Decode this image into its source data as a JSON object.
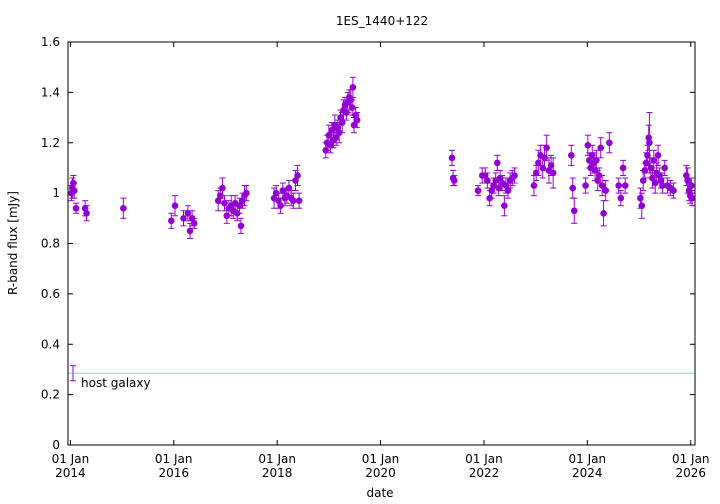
{
  "chart_data": {
    "type": "scatter",
    "title": "1ES_1440+122",
    "xlabel": "date",
    "ylabel": "R-band flux [mJy]",
    "ylim": [
      0,
      1.6
    ],
    "xlim": [
      "2013-12-15",
      "2026-01-31"
    ],
    "grid": false,
    "legend": "none",
    "y_ticks": [
      "0",
      "0.2",
      "0.4",
      "0.6",
      "0.8",
      "1",
      "1.2",
      "1.4",
      "1.6"
    ],
    "x_ticks": [
      {
        "date": "2014-01-01",
        "line1": "01 Jan",
        "line2": "2014"
      },
      {
        "date": "2016-01-01",
        "line1": "01 Jan",
        "line2": "2016"
      },
      {
        "date": "2018-01-01",
        "line1": "01 Jan",
        "line2": "2018"
      },
      {
        "date": "2020-01-01",
        "line1": "01 Jan",
        "line2": "2020"
      },
      {
        "date": "2022-01-01",
        "line1": "01 Jan",
        "line2": "2022"
      },
      {
        "date": "2024-01-01",
        "line1": "01 Jan",
        "line2": "2024"
      },
      {
        "date": "2026-01-01",
        "line1": "01 Jan",
        "line2": "2026"
      }
    ],
    "host_galaxy": {
      "label": "host galaxy",
      "value": 0.285,
      "error": 0.03,
      "line_color": "#7fd4d0"
    },
    "point_color": "#9400d3",
    "series": [
      {
        "points": [
          [
            "2014-01-08",
            1.0,
            0.03
          ],
          [
            "2014-01-15",
            1.02,
            0.04
          ],
          [
            "2014-01-22",
            1.04,
            0.03
          ],
          [
            "2014-01-28",
            1.01,
            0.03
          ],
          [
            "2014-02-10",
            0.94,
            0.02
          ],
          [
            "2014-04-15",
            0.94,
            0.03
          ],
          [
            "2014-04-25",
            0.92,
            0.03
          ],
          [
            "2015-01-10",
            0.94,
            0.04
          ],
          [
            "2015-12-15",
            0.89,
            0.03
          ],
          [
            "2016-01-10",
            0.95,
            0.04
          ],
          [
            "2016-03-10",
            0.9,
            0.03
          ],
          [
            "2016-04-10",
            0.92,
            0.03
          ],
          [
            "2016-04-25",
            0.85,
            0.03
          ],
          [
            "2016-05-10",
            0.9,
            0.03
          ],
          [
            "2016-05-25",
            0.88,
            0.02
          ],
          [
            "2016-11-10",
            0.97,
            0.04
          ],
          [
            "2016-11-25",
            0.99,
            0.03
          ],
          [
            "2016-12-10",
            1.02,
            0.04
          ],
          [
            "2016-12-25",
            0.96,
            0.03
          ],
          [
            "2017-01-10",
            0.91,
            0.03
          ],
          [
            "2017-01-25",
            0.94,
            0.03
          ],
          [
            "2017-02-10",
            0.95,
            0.04
          ],
          [
            "2017-02-25",
            0.93,
            0.03
          ],
          [
            "2017-03-10",
            0.96,
            0.03
          ],
          [
            "2017-03-25",
            0.92,
            0.03
          ],
          [
            "2017-04-10",
            0.95,
            0.03
          ],
          [
            "2017-04-20",
            0.87,
            0.03
          ],
          [
            "2017-05-01",
            0.97,
            0.03
          ],
          [
            "2017-05-15",
            0.99,
            0.04
          ],
          [
            "2017-05-28",
            1.0,
            0.03
          ],
          [
            "2017-12-10",
            0.98,
            0.04
          ],
          [
            "2017-12-25",
            1.0,
            0.03
          ],
          [
            "2018-01-10",
            0.97,
            0.03
          ],
          [
            "2018-01-25",
            0.95,
            0.03
          ],
          [
            "2018-02-10",
            1.01,
            0.03
          ],
          [
            "2018-02-25",
            0.98,
            0.03
          ],
          [
            "2018-03-10",
            0.99,
            0.03
          ],
          [
            "2018-03-25",
            1.02,
            0.03
          ],
          [
            "2018-04-10",
            0.98,
            0.03
          ],
          [
            "2018-04-25",
            0.97,
            0.03
          ],
          [
            "2018-05-10",
            1.05,
            0.04
          ],
          [
            "2018-05-25",
            1.07,
            0.04
          ],
          [
            "2018-06-05",
            0.97,
            0.03
          ],
          [
            "2018-12-10",
            1.17,
            0.03
          ],
          [
            "2018-12-20",
            1.2,
            0.03
          ],
          [
            "2019-01-01",
            1.23,
            0.04
          ],
          [
            "2019-01-12",
            1.19,
            0.03
          ],
          [
            "2019-01-22",
            1.25,
            0.03
          ],
          [
            "2019-02-02",
            1.21,
            0.03
          ],
          [
            "2019-02-12",
            1.27,
            0.04
          ],
          [
            "2019-02-22",
            1.22,
            0.03
          ],
          [
            "2019-03-05",
            1.26,
            0.03
          ],
          [
            "2019-03-15",
            1.24,
            0.04
          ],
          [
            "2019-03-25",
            1.3,
            0.03
          ],
          [
            "2019-04-05",
            1.28,
            0.04
          ],
          [
            "2019-04-15",
            1.33,
            0.04
          ],
          [
            "2019-04-25",
            1.35,
            0.03
          ],
          [
            "2019-05-05",
            1.32,
            0.03
          ],
          [
            "2019-05-15",
            1.36,
            0.04
          ],
          [
            "2019-05-25",
            1.38,
            0.03
          ],
          [
            "2019-06-05",
            1.37,
            0.04
          ],
          [
            "2019-06-15",
            1.34,
            0.03
          ],
          [
            "2019-06-20",
            1.42,
            0.04
          ],
          [
            "2019-06-28",
            1.27,
            0.03
          ],
          [
            "2019-07-10",
            1.31,
            0.03
          ],
          [
            "2019-07-20",
            1.29,
            0.03
          ],
          [
            "2021-05-20",
            1.14,
            0.03
          ],
          [
            "2021-05-28",
            1.06,
            0.03
          ],
          [
            "2021-06-05",
            1.05,
            0.02
          ],
          [
            "2021-11-20",
            1.01,
            0.02
          ],
          [
            "2021-12-20",
            1.07,
            0.03
          ],
          [
            "2022-01-10",
            1.07,
            0.03
          ],
          [
            "2022-01-25",
            1.05,
            0.03
          ],
          [
            "2022-02-10",
            0.98,
            0.03
          ],
          [
            "2022-02-25",
            1.01,
            0.03
          ],
          [
            "2022-03-10",
            1.03,
            0.03
          ],
          [
            "2022-03-25",
            1.05,
            0.03
          ],
          [
            "2022-04-05",
            1.12,
            0.03
          ],
          [
            "2022-04-15",
            1.02,
            0.03
          ],
          [
            "2022-04-25",
            1.06,
            0.03
          ],
          [
            "2022-05-10",
            1.04,
            0.03
          ],
          [
            "2022-05-25",
            0.95,
            0.04
          ],
          [
            "2022-06-05",
            1.03,
            0.03
          ],
          [
            "2022-06-20",
            1.01,
            0.03
          ],
          [
            "2022-07-05",
            1.05,
            0.03
          ],
          [
            "2022-07-20",
            1.06,
            0.03
          ],
          [
            "2022-08-05",
            1.07,
            0.03
          ],
          [
            "2022-12-20",
            1.03,
            0.04
          ],
          [
            "2023-01-05",
            1.08,
            0.03
          ],
          [
            "2023-01-20",
            1.12,
            0.05
          ],
          [
            "2023-02-05",
            1.15,
            0.04
          ],
          [
            "2023-02-20",
            1.1,
            0.04
          ],
          [
            "2023-03-05",
            1.14,
            0.05
          ],
          [
            "2023-03-20",
            1.18,
            0.05
          ],
          [
            "2023-04-05",
            1.09,
            0.05
          ],
          [
            "2023-04-20",
            1.11,
            0.04
          ],
          [
            "2023-05-05",
            1.08,
            0.06
          ],
          [
            "2023-09-10",
            1.15,
            0.04
          ],
          [
            "2023-09-20",
            1.02,
            0.04
          ],
          [
            "2023-10-01",
            0.93,
            0.05
          ],
          [
            "2023-12-20",
            1.03,
            0.03
          ],
          [
            "2024-01-05",
            1.19,
            0.04
          ],
          [
            "2024-01-15",
            1.13,
            0.03
          ],
          [
            "2024-01-25",
            1.1,
            0.03
          ],
          [
            "2024-02-05",
            1.15,
            0.04
          ],
          [
            "2024-02-15",
            1.12,
            0.04
          ],
          [
            "2024-02-25",
            1.09,
            0.04
          ],
          [
            "2024-03-05",
            1.13,
            0.04
          ],
          [
            "2024-03-15",
            1.05,
            0.04
          ],
          [
            "2024-03-25",
            1.07,
            0.03
          ],
          [
            "2024-04-05",
            1.18,
            0.04
          ],
          [
            "2024-04-15",
            1.03,
            0.04
          ],
          [
            "2024-04-25",
            0.92,
            0.05
          ],
          [
            "2024-05-10",
            1.01,
            0.04
          ],
          [
            "2024-06-05",
            1.2,
            0.04
          ],
          [
            "2024-08-10",
            1.03,
            0.03
          ],
          [
            "2024-08-25",
            0.98,
            0.03
          ],
          [
            "2024-09-10",
            1.1,
            0.03
          ],
          [
            "2024-09-25",
            1.03,
            0.03
          ],
          [
            "2025-01-10",
            0.98,
            0.04
          ],
          [
            "2025-01-20",
            0.95,
            0.05
          ],
          [
            "2025-01-30",
            1.05,
            0.04
          ],
          [
            "2025-02-10",
            1.09,
            0.03
          ],
          [
            "2025-02-20",
            1.12,
            0.04
          ],
          [
            "2025-03-01",
            1.15,
            0.04
          ],
          [
            "2025-03-10",
            1.22,
            0.05
          ],
          [
            "2025-03-15",
            1.2,
            0.12
          ],
          [
            "2025-03-25",
            1.1,
            0.04
          ],
          [
            "2025-04-05",
            1.06,
            0.04
          ],
          [
            "2025-04-15",
            1.13,
            0.04
          ],
          [
            "2025-04-25",
            1.04,
            0.04
          ],
          [
            "2025-05-05",
            1.08,
            0.04
          ],
          [
            "2025-05-15",
            1.15,
            0.04
          ],
          [
            "2025-05-25",
            1.07,
            0.03
          ],
          [
            "2025-06-05",
            1.05,
            0.03
          ],
          [
            "2025-06-15",
            1.03,
            0.03
          ],
          [
            "2025-07-01",
            1.1,
            0.03
          ],
          [
            "2025-07-20",
            1.03,
            0.03
          ],
          [
            "2025-08-10",
            1.02,
            0.03
          ],
          [
            "2025-09-01",
            1.01,
            0.03
          ],
          [
            "2025-12-01",
            1.07,
            0.04
          ],
          [
            "2025-12-10",
            1.05,
            0.05
          ],
          [
            "2025-12-20",
            1.01,
            0.04
          ],
          [
            "2025-12-28",
            0.99,
            0.03
          ],
          [
            "2026-01-05",
            1.03,
            0.03
          ],
          [
            "2026-01-10",
            0.98,
            0.03
          ]
        ]
      }
    ]
  }
}
